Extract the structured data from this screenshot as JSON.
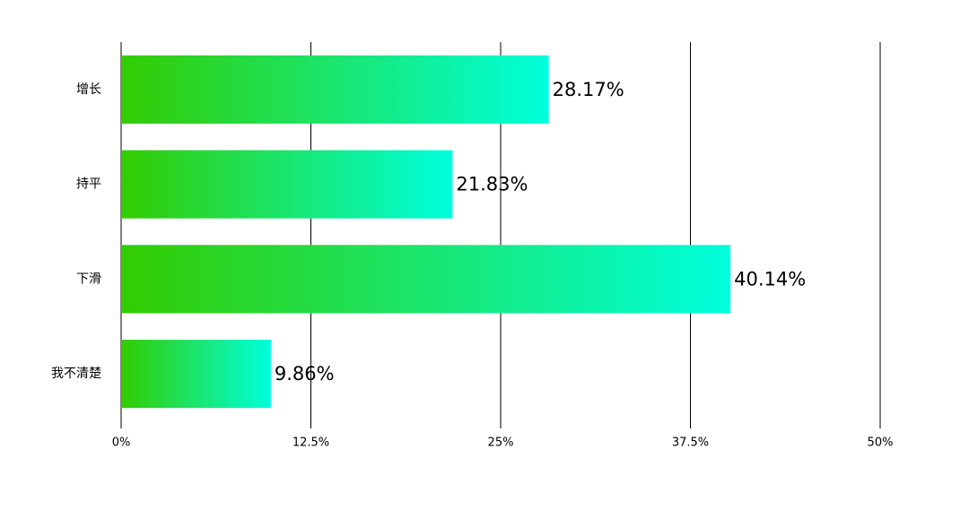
{
  "chart_data": {
    "type": "hbar",
    "categories": [
      "增长",
      "持平",
      "下滑",
      "我不清楚"
    ],
    "values": [
      28.17,
      21.83,
      40.14,
      9.86
    ],
    "value_labels": [
      "28.17%",
      "21.83%",
      "40.14%",
      "9.86%"
    ],
    "gradient": [
      "#33cc00",
      "#00ffdd"
    ],
    "xlim": [
      0,
      50
    ],
    "xticks": [
      {
        "value": 0,
        "label": "0%"
      },
      {
        "value": 12.5,
        "label": "12.5%"
      },
      {
        "value": 25,
        "label": "25%"
      },
      {
        "value": 37.5,
        "label": "37.5%"
      },
      {
        "value": 50,
        "label": "50%"
      }
    ],
    "grid": true
  }
}
